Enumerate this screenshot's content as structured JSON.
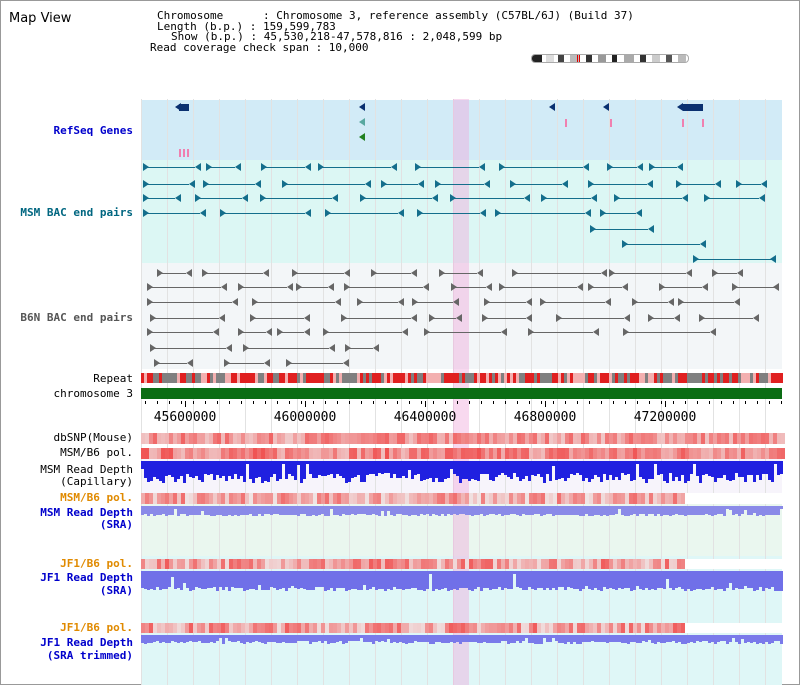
{
  "title": "Map View",
  "info": {
    "chromosome": "Chromosome      : Chromosome 3, reference assembly (C57BL/6J) (Build 37)",
    "length": "Length (b.p.) : 159,599,783",
    "show": "Show (b.p.) : 45,530,218-47,578,816 : 2,048,599 bp",
    "span": "Read coverage check span : 10,000"
  },
  "tracks": {
    "refseq": "RefSeq Genes",
    "msm_bac": "MSM BAC end pairs",
    "b6n_bac": "B6N BAC end pairs",
    "repeat": "Repeat",
    "chromosome": "chromosome 3",
    "dbsnp": "dbSNP(Mouse)",
    "msm_b6_pol1": "MSM/B6 pol.",
    "msm_depth_cap_1": "MSM Read Depth",
    "msm_depth_cap_2": "(Capillary)",
    "msm_b6_pol2": "MSM/B6 pol.",
    "msm_depth_sra_1": "MSM Read Depth",
    "msm_depth_sra_2": "(SRA)",
    "jf1_b6_pol1": "JF1/B6 pol.",
    "jf1_depth_sra_1": "JF1 Read Depth",
    "jf1_depth_sra_2": "(SRA)",
    "jf1_b6_pol2": "JF1/B6 pol.",
    "jf1_depth_trim_1": "JF1 Read Depth",
    "jf1_depth_trim_2": "(SRA trimmed)"
  },
  "axis": {
    "ticks": [
      "45600000",
      "46000000",
      "46400000",
      "46800000",
      "47200000"
    ]
  },
  "colors": {
    "refseq_label": "#0000cc",
    "msm_bac_label": "#006680",
    "b6n_bac_label": "#555555",
    "pol_label_orange": "#e08a00",
    "depth_label_blue": "#0000cc",
    "refseq_bg": "#d2ebf7",
    "msm_bg": "#dcf7f4",
    "b6n_bg": "#f3f6f8",
    "depth_bg": "#eaf7ef",
    "jf1_bg": "#dff7f7",
    "selection": "#f2b6e4",
    "chromosome_bar": "#0b6d14"
  }
}
